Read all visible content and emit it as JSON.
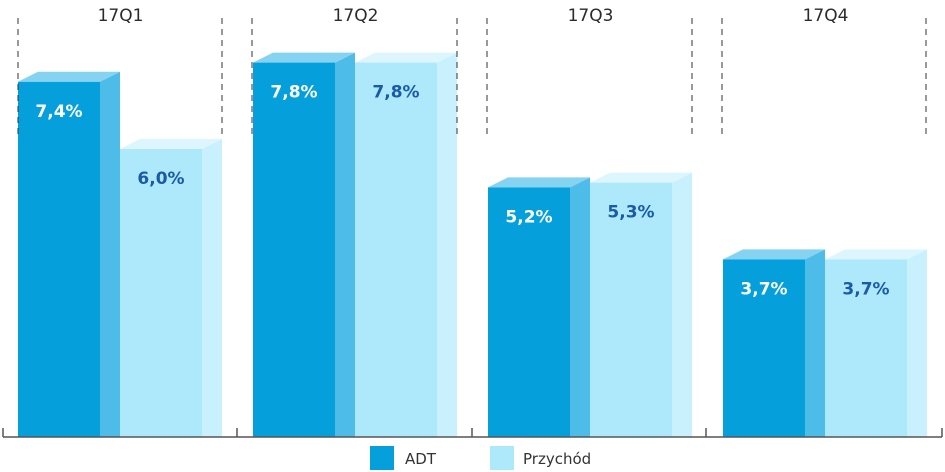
{
  "chart_data": {
    "type": "bar",
    "categories": [
      "17Q1",
      "17Q2",
      "17Q3",
      "17Q4"
    ],
    "series": [
      {
        "name": "ADT",
        "values": [
          7.4,
          7.8,
          5.2,
          3.7
        ],
        "labels": [
          "7,4%",
          "7,8%",
          "5,2%",
          "3,7%"
        ]
      },
      {
        "name": "Przychód",
        "values": [
          6.0,
          7.8,
          5.3,
          3.7
        ],
        "labels": [
          "6,0%",
          "7,8%",
          "5,3%",
          "3,7%"
        ]
      }
    ],
    "ylim": [
      0,
      8.3
    ],
    "style": "3d",
    "legend": "bottom-center",
    "grid": false
  },
  "colors": {
    "series": [
      {
        "front": "#05a0dc",
        "side": "#4ebce8",
        "top": "#86d2f1",
        "label": "#ffffff"
      },
      {
        "front": "#aee8fb",
        "side": "#c8f0fd",
        "top": "#ddf6fe",
        "label": "#1a5aa6"
      }
    ],
    "axis": "#555555",
    "divider": "#333333"
  }
}
